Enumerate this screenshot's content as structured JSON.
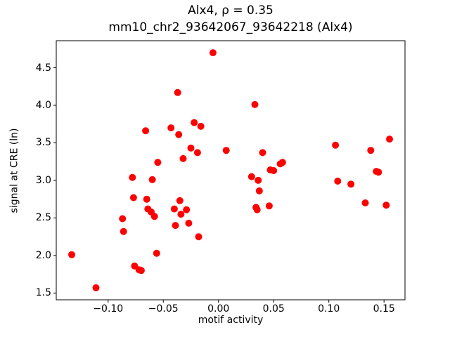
{
  "chart_data": {
    "type": "scatter",
    "title": "Alx4, ρ = 0.35",
    "subtitle": "mm10_chr2_93642067_93642218 (Alx4)",
    "xlabel": "motif activity",
    "ylabel": "signal at CRE (ln)",
    "xlim": [
      -0.147,
      0.169
    ],
    "ylim": [
      1.41,
      4.86
    ],
    "grid": false,
    "legend": "none",
    "marker_color": "#ff0000",
    "marker_radius": 5,
    "axis_color": "#000000",
    "x_ticks": {
      "values": [
        -0.1,
        -0.05,
        0.0,
        0.05,
        0.1,
        0.15
      ],
      "labels": [
        "−0.10",
        "−0.05",
        "0.00",
        "0.05",
        "0.10",
        "0.15"
      ]
    },
    "y_ticks": {
      "values": [
        1.5,
        2.0,
        2.5,
        3.0,
        3.5,
        4.0,
        4.5
      ],
      "labels": [
        "1.5",
        "2.0",
        "2.5",
        "3.0",
        "3.5",
        "4.0",
        "4.5"
      ]
    },
    "points": [
      [
        -0.133,
        2.01
      ],
      [
        -0.111,
        1.57
      ],
      [
        -0.087,
        2.49
      ],
      [
        -0.086,
        2.32
      ],
      [
        -0.078,
        3.04
      ],
      [
        -0.077,
        2.77
      ],
      [
        -0.076,
        1.86
      ],
      [
        -0.072,
        1.81
      ],
      [
        -0.07,
        1.8
      ],
      [
        -0.066,
        3.66
      ],
      [
        -0.065,
        2.75
      ],
      [
        -0.064,
        2.62
      ],
      [
        -0.061,
        2.58
      ],
      [
        -0.06,
        3.01
      ],
      [
        -0.058,
        2.52
      ],
      [
        -0.056,
        2.03
      ],
      [
        -0.055,
        3.24
      ],
      [
        -0.043,
        3.7
      ],
      [
        -0.04,
        2.62
      ],
      [
        -0.039,
        2.4
      ],
      [
        -0.037,
        4.17
      ],
      [
        -0.036,
        3.61
      ],
      [
        -0.035,
        2.73
      ],
      [
        -0.034,
        2.55
      ],
      [
        -0.032,
        3.29
      ],
      [
        -0.029,
        2.61
      ],
      [
        -0.027,
        2.43
      ],
      [
        -0.025,
        3.43
      ],
      [
        -0.022,
        3.77
      ],
      [
        -0.019,
        3.37
      ],
      [
        -0.018,
        2.25
      ],
      [
        -0.016,
        3.72
      ],
      [
        -0.005,
        4.7
      ],
      [
        0.007,
        3.4
      ],
      [
        0.03,
        3.05
      ],
      [
        0.033,
        4.01
      ],
      [
        0.034,
        2.64
      ],
      [
        0.035,
        2.61
      ],
      [
        0.036,
        3.0
      ],
      [
        0.037,
        2.86
      ],
      [
        0.04,
        3.37
      ],
      [
        0.046,
        2.66
      ],
      [
        0.047,
        3.14
      ],
      [
        0.05,
        3.13
      ],
      [
        0.056,
        3.22
      ],
      [
        0.058,
        3.24
      ],
      [
        0.106,
        3.47
      ],
      [
        0.108,
        2.99
      ],
      [
        0.12,
        2.95
      ],
      [
        0.133,
        2.7
      ],
      [
        0.138,
        3.4
      ],
      [
        0.143,
        3.12
      ],
      [
        0.145,
        3.11
      ],
      [
        0.152,
        2.67
      ],
      [
        0.155,
        3.55
      ]
    ]
  }
}
